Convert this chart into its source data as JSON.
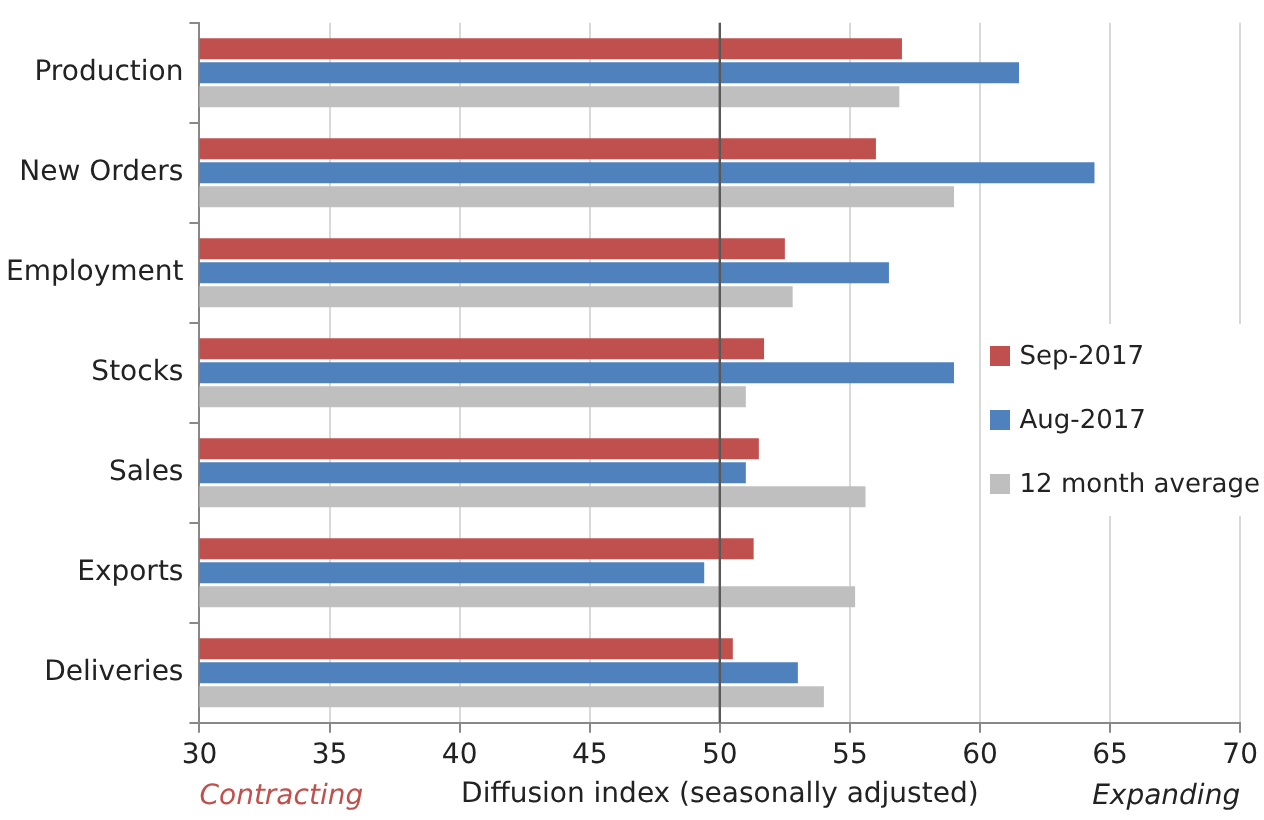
{
  "chart_data": {
    "type": "bar",
    "orientation": "horizontal",
    "xlabel": "Diffusion index (seasonally adjusted)",
    "categories": [
      "Production",
      "New Orders",
      "Employment",
      "Stocks",
      "Sales",
      "Exports",
      "Deliveries"
    ],
    "series": [
      {
        "name": "Sep-2017",
        "color": "#c0504d",
        "values": [
          57.0,
          56.0,
          52.5,
          51.7,
          51.5,
          51.3,
          50.5
        ]
      },
      {
        "name": "Aug-2017",
        "color": "#4f81bd",
        "values": [
          61.5,
          64.4,
          56.5,
          59.0,
          51.0,
          49.4,
          53.0
        ]
      },
      {
        "name": "12 month average",
        "color": "#bfbfbf",
        "values": [
          56.9,
          59.0,
          52.8,
          51.0,
          55.6,
          55.2,
          54.0
        ]
      }
    ],
    "xlim": [
      30,
      70
    ],
    "xticks": [
      30,
      35,
      40,
      45,
      50,
      55,
      60,
      65,
      70
    ],
    "grid": "x",
    "legend": "right",
    "ref_lines": [
      {
        "axis": "x",
        "value": 50,
        "color": "#595959"
      }
    ],
    "annotations": [
      "Contracting",
      "Expanding"
    ]
  }
}
